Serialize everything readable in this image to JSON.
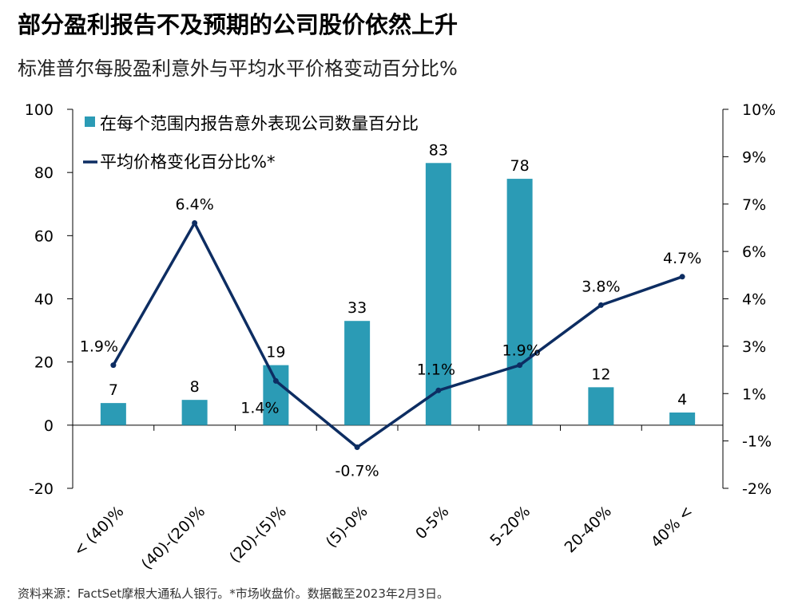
{
  "title": "部分盈利报告不及预期的公司股价依然上升",
  "subtitle": "标准普尔每股盈利意外与平均水平价格变动百分比%",
  "source": "资料来源：FactSet摩根大通私人银行。*市场收盘价。数据截至2023年2月3日。",
  "colors": {
    "bar": "#2b9bb5",
    "line": "#0d2d62",
    "axis": "#000000"
  },
  "chart_data": {
    "type": "bar+line",
    "categories": [
      "< (40)%",
      "(40)-(20)%",
      "(20)-(5)%",
      "(5)-0%",
      "0-5%",
      "5-20%",
      "20-40%",
      "40% <"
    ],
    "series": [
      {
        "name": "在每个范围内报告意外表现公司数量百分比",
        "type": "bar",
        "axis": "left",
        "values": [
          7,
          8,
          19,
          33,
          83,
          78,
          12,
          4
        ],
        "labels": [
          "7",
          "8",
          "19",
          "33",
          "83",
          "78",
          "12",
          "4"
        ]
      },
      {
        "name": "平均价格变化百分比%*",
        "type": "line",
        "axis": "right",
        "values": [
          1.9,
          6.4,
          1.4,
          -0.7,
          1.1,
          1.9,
          3.8,
          4.7
        ],
        "labels": [
          "1.9%",
          "6.4%",
          "1.4%",
          "-0.7%",
          "1.1%",
          "1.9%",
          "3.8%",
          "4.7%"
        ]
      }
    ],
    "left_axis": {
      "ylim": [
        -20,
        100
      ],
      "ticks": [
        "-20",
        "0",
        "20",
        "40",
        "60",
        "80",
        "100"
      ]
    },
    "right_axis": {
      "ylim": [
        -2,
        10
      ],
      "ticks": [
        "-2%",
        "-1%",
        "1%",
        "3%",
        "4%",
        "6%",
        "7%",
        "9%",
        "10%"
      ]
    },
    "legend": "top-left",
    "grid": false
  }
}
